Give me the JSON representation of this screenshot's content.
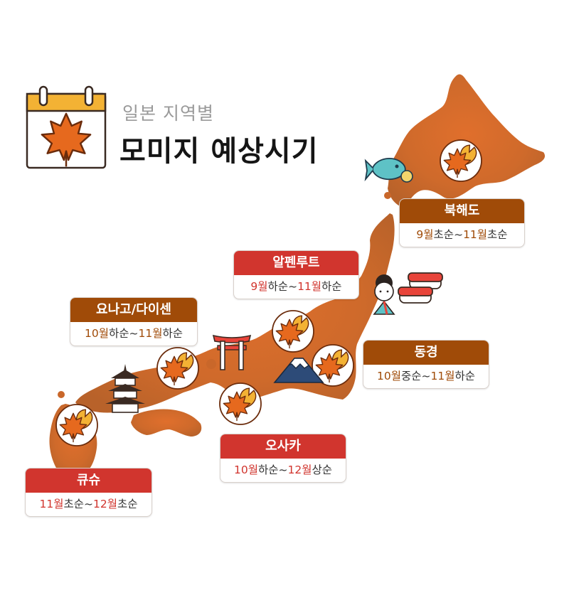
{
  "header": {
    "subtitle": "일본 지역별",
    "title": "모미지 예상시기"
  },
  "colors": {
    "map_fill": "#c9672a",
    "card_red": "#d1352e",
    "card_brown": "#a04b08",
    "leaf_orange": "#e6691e"
  },
  "regions": [
    {
      "name": "북해도",
      "start_num": "9월",
      "start_suffix": "초순",
      "end_num": "11월",
      "end_suffix": "초순",
      "theme": "brown"
    },
    {
      "name": "알펜루트",
      "start_num": "9월",
      "start_suffix": "하순",
      "end_num": "11월",
      "end_suffix": "하순",
      "theme": "red"
    },
    {
      "name": "요나고/다이센",
      "start_num": "10월",
      "start_suffix": "하순",
      "end_num": "11월",
      "end_suffix": "하순",
      "theme": "brown"
    },
    {
      "name": "동경",
      "start_num": "10월",
      "start_suffix": "중순",
      "end_num": "11월",
      "end_suffix": "하순",
      "theme": "brown"
    },
    {
      "name": "오사카",
      "start_num": "10월",
      "start_suffix": "하순",
      "end_num": "12월",
      "end_suffix": "상순",
      "theme": "red"
    },
    {
      "name": "큐슈",
      "start_num": "11월",
      "start_suffix": "초순",
      "end_num": "12월",
      "end_suffix": "초순",
      "theme": "red"
    }
  ],
  "separator": "~",
  "icons": [
    "calendar-leaf-icon",
    "maple-leaf-icon",
    "taiyaki-fish-icon",
    "sushi-icon",
    "geisha-icon",
    "torii-gate-icon",
    "pagoda-icon",
    "mount-fuji-icon"
  ]
}
